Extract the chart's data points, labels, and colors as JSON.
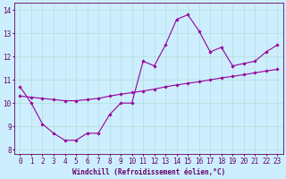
{
  "xlabel": "Windchill (Refroidissement éolien,°C)",
  "x_ticks": [
    0,
    1,
    2,
    3,
    4,
    5,
    6,
    7,
    8,
    9,
    10,
    11,
    12,
    13,
    14,
    15,
    16,
    17,
    18,
    19,
    20,
    21,
    22,
    23
  ],
  "ylim": [
    7.8,
    14.3
  ],
  "xlim": [
    -0.5,
    23.5
  ],
  "yticks": [
    8,
    9,
    10,
    11,
    12,
    13,
    14
  ],
  "line1_x": [
    0,
    1,
    2,
    3,
    4,
    5,
    6,
    7,
    8,
    9,
    10,
    11,
    12,
    13,
    14,
    15,
    16,
    17,
    18,
    19,
    20,
    21,
    22,
    23
  ],
  "line1_y": [
    10.7,
    10.0,
    9.1,
    8.7,
    8.4,
    8.4,
    8.7,
    8.7,
    9.5,
    10.0,
    10.0,
    11.8,
    11.6,
    12.5,
    13.6,
    13.8,
    13.1,
    12.2,
    12.4,
    11.6,
    11.7,
    11.8,
    12.2,
    12.5
  ],
  "line2_x": [
    0,
    1,
    2,
    3,
    4,
    5,
    6,
    7,
    8,
    9,
    10,
    11,
    12,
    13,
    14,
    15,
    16,
    17,
    18,
    19,
    20,
    21,
    22,
    23
  ],
  "line2_y": [
    10.3,
    10.25,
    10.2,
    10.15,
    10.1,
    10.1,
    10.15,
    10.2,
    10.3,
    10.38,
    10.45,
    10.52,
    10.6,
    10.7,
    10.78,
    10.85,
    10.92,
    11.0,
    11.08,
    11.15,
    11.22,
    11.3,
    11.38,
    11.45
  ],
  "line_color": "#990099",
  "bg_color": "#cceeff",
  "grid_color": "#aaddcc",
  "label_color": "#660066",
  "tick_color": "#660066",
  "marker": "D",
  "marker_size": 1.8,
  "linewidth": 0.8,
  "font_size": 5.5
}
